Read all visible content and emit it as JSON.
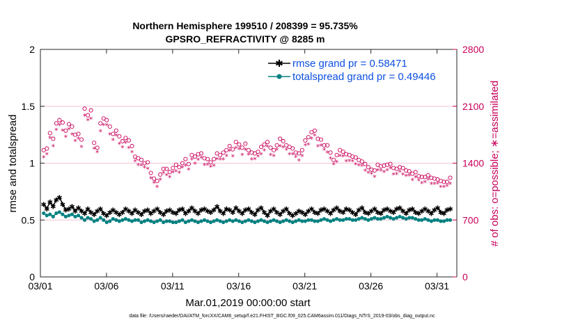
{
  "chart_data": {
    "type": "line",
    "title_line1": "Northern Hemisphere 199510 / 208399 = 95.735%",
    "title_line2": "GPSRO_REFRACTIVITY @ 8285 m",
    "xlabel": "Mar.01,2019 00:00:00 start",
    "ylabel_left": "rmse and totalspread",
    "ylabel_right": "# of obs: o=possible; ∗=assimilated",
    "footnote": "data file: /Users/raeder/DAI/ATM_forcXX/CAM6_setup/f.e21.FHIST_BGC.f09_025.CAM6assim.011/Diags_NTrS_2019-03/obs_diag_output.nc",
    "x_range_days": [
      0,
      31.5
    ],
    "x_ticks": [
      {
        "day": 0,
        "label": "03/01"
      },
      {
        "day": 5,
        "label": "03/06"
      },
      {
        "day": 10,
        "label": "03/11"
      },
      {
        "day": 15,
        "label": "03/16"
      },
      {
        "day": 20,
        "label": "03/21"
      },
      {
        "day": 25,
        "label": "03/26"
      },
      {
        "day": 30,
        "label": "03/31"
      }
    ],
    "ylim_left": [
      0,
      2
    ],
    "y_ticks_left": [
      "0",
      "0.5",
      "1",
      "1.5",
      "2"
    ],
    "ylim_right": [
      0,
      2800
    ],
    "y_ticks_right": [
      "0",
      "700",
      "1400",
      "2100",
      "2800"
    ],
    "rmse_base": [
      0.64,
      0.6,
      0.66,
      0.62,
      0.68,
      0.7,
      0.64,
      0.59,
      0.6,
      0.62,
      0.58,
      0.61,
      0.58,
      0.56,
      0.6,
      0.57,
      0.55,
      0.58,
      0.6,
      0.56,
      0.54,
      0.57,
      0.59,
      0.57,
      0.55,
      0.57,
      0.6,
      0.58,
      0.56,
      0.59,
      0.57,
      0.55,
      0.58,
      0.59,
      0.56,
      0.58,
      0.6,
      0.57,
      0.55,
      0.58,
      0.59,
      0.57,
      0.56,
      0.59,
      0.6,
      0.56,
      0.58,
      0.61,
      0.58,
      0.56,
      0.59,
      0.6,
      0.58,
      0.57,
      0.59,
      0.62,
      0.58,
      0.56,
      0.6,
      0.59,
      0.57,
      0.61,
      0.58,
      0.56,
      0.59,
      0.6,
      0.57,
      0.55,
      0.59,
      0.61,
      0.57,
      0.54,
      0.58,
      0.6,
      0.57,
      0.55,
      0.58,
      0.6,
      0.56,
      0.54,
      0.56,
      0.58,
      0.57,
      0.55,
      0.58,
      0.6,
      0.57,
      0.56,
      0.59,
      0.6,
      0.58,
      0.56,
      0.59,
      0.61,
      0.58,
      0.57,
      0.6,
      0.59,
      0.57,
      0.55,
      0.59,
      0.61,
      0.57,
      0.56,
      0.58,
      0.6,
      0.57,
      0.56,
      0.59,
      0.6,
      0.58,
      0.57,
      0.6,
      0.61,
      0.58,
      0.56,
      0.59,
      0.6,
      0.57,
      0.56,
      0.58,
      0.6,
      0.58,
      0.56,
      0.59,
      0.61,
      0.57,
      0.56,
      0.59,
      0.6
    ],
    "spread_base": [
      0.56,
      0.54,
      0.55,
      0.53,
      0.56,
      0.57,
      0.55,
      0.53,
      0.54,
      0.55,
      0.53,
      0.54,
      0.52,
      0.5,
      0.52,
      0.51,
      0.49,
      0.5,
      0.52,
      0.5,
      0.48,
      0.49,
      0.51,
      0.5,
      0.49,
      0.5,
      0.51,
      0.5,
      0.49,
      0.5,
      0.5,
      0.48,
      0.49,
      0.5,
      0.49,
      0.48,
      0.49,
      0.5,
      0.48,
      0.49,
      0.49,
      0.48,
      0.48,
      0.49,
      0.5,
      0.48,
      0.49,
      0.5,
      0.49,
      0.48,
      0.49,
      0.5,
      0.49,
      0.48,
      0.49,
      0.5,
      0.49,
      0.48,
      0.49,
      0.5,
      0.49,
      0.5,
      0.49,
      0.48,
      0.49,
      0.5,
      0.49,
      0.48,
      0.49,
      0.5,
      0.49,
      0.48,
      0.49,
      0.5,
      0.49,
      0.48,
      0.49,
      0.5,
      0.49,
      0.48,
      0.49,
      0.5,
      0.49,
      0.49,
      0.5,
      0.5,
      0.49,
      0.49,
      0.5,
      0.51,
      0.5,
      0.49,
      0.5,
      0.51,
      0.5,
      0.5,
      0.51,
      0.51,
      0.5,
      0.5,
      0.51,
      0.52,
      0.51,
      0.5,
      0.51,
      0.52,
      0.51,
      0.51,
      0.52,
      0.53,
      0.52,
      0.51,
      0.52,
      0.53,
      0.52,
      0.51,
      0.52,
      0.52,
      0.51,
      0.5,
      0.5,
      0.51,
      0.5,
      0.49,
      0.5,
      0.5,
      0.49,
      0.49,
      0.5,
      0.5
    ],
    "obs_possible_base": [
      1560,
      1580,
      1770,
      1700,
      1890,
      1930,
      1900,
      1800,
      1880,
      1850,
      1750,
      1760,
      1690,
      2070,
      1990,
      2050,
      1650,
      1590,
      1890,
      1950,
      1930,
      1850,
      1760,
      1800,
      1730,
      1670,
      1710,
      1680,
      1610,
      1480,
      1460,
      1440,
      1400,
      1410,
      1280,
      1210,
      1180,
      1260,
      1330,
      1330,
      1290,
      1340,
      1380,
      1350,
      1400,
      1450,
      1390,
      1500,
      1480,
      1510,
      1520,
      1460,
      1450,
      1410,
      1450,
      1520,
      1500,
      1530,
      1560,
      1610,
      1570,
      1660,
      1630,
      1590,
      1640,
      1560,
      1530,
      1520,
      1540,
      1600,
      1630,
      1660,
      1590,
      1560,
      1620,
      1700,
      1670,
      1620,
      1600,
      1580,
      1530,
      1520,
      1560,
      1680,
      1720,
      1780,
      1800,
      1700,
      1690,
      1620,
      1620,
      1530,
      1440,
      1500,
      1560,
      1540,
      1510,
      1500,
      1480,
      1470,
      1440,
      1420,
      1390,
      1350,
      1320,
      1310,
      1380,
      1360,
      1370,
      1380,
      1390,
      1340,
      1330,
      1350,
      1340,
      1310,
      1300,
      1270,
      1290,
      1240,
      1230,
      1230,
      1250,
      1220,
      1210,
      1200,
      1180,
      1170,
      1170,
      1220
    ],
    "series": [
      {
        "name": "rmse grand pr = 0.58471",
        "axis": "left",
        "color": "#000000",
        "marker": "star",
        "values_ref": "rmse"
      },
      {
        "name": "totalspread grand pr = 0.49446",
        "axis": "left",
        "color": "#008080",
        "marker": "circle",
        "values_ref": "spread"
      },
      {
        "name": "obs possible",
        "axis": "right",
        "color": "#c8005a",
        "marker": "open-circle",
        "values_ref": "possible"
      },
      {
        "name": "obs assimilated",
        "axis": "right",
        "color": "#c8005a",
        "marker": "asterisk",
        "values_ref": "assimilated"
      }
    ]
  },
  "legend": {
    "rmse_label": "rmse grand pr = 0.58471",
    "spread_label": "totalspread grand pr = 0.49446"
  },
  "colors": {
    "rmse": "#000000",
    "spread": "#008080",
    "obs": "#c8005a",
    "legend_text": "#0b4fe0",
    "grid_right": "#f3c4d6"
  }
}
